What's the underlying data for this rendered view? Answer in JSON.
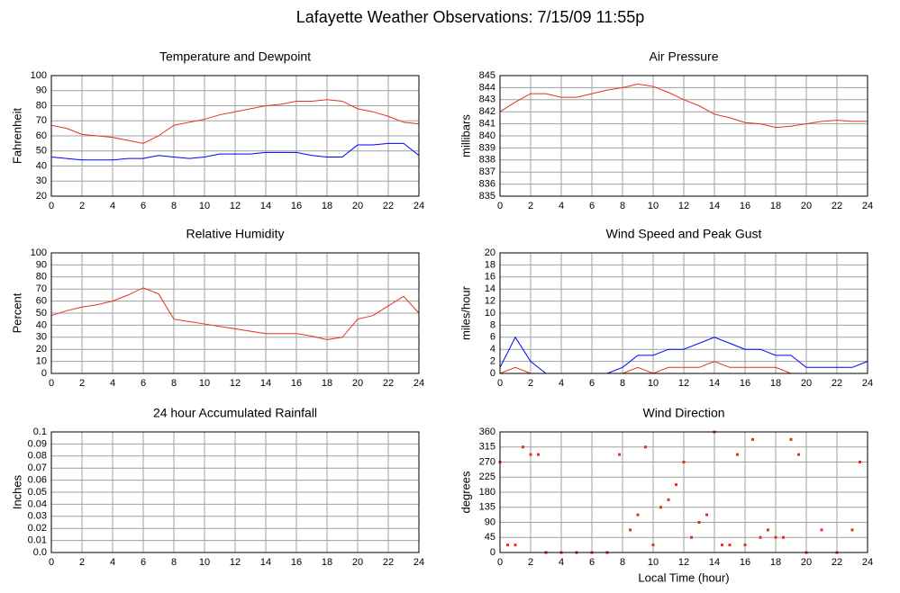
{
  "title": "Lafayette Weather Observations: 7/15/09 11:55p",
  "chart_data": [
    {
      "type": "line",
      "title": "Temperature and Dewpoint",
      "ylabel": "Fahrenheit",
      "x": [
        0,
        1,
        2,
        3,
        4,
        5,
        6,
        7,
        8,
        9,
        10,
        11,
        12,
        13,
        14,
        15,
        16,
        17,
        18,
        19,
        20,
        21,
        22,
        23,
        24
      ],
      "series": [
        {
          "color": "#e8301c",
          "values": [
            67,
            65,
            61,
            60,
            59,
            57,
            55,
            60,
            67,
            69,
            71,
            74,
            76,
            78,
            80,
            81,
            83,
            83,
            84,
            83,
            78,
            76,
            73,
            69,
            68
          ]
        },
        {
          "color": "#0000ff",
          "values": [
            46,
            45,
            44,
            44,
            44,
            45,
            45,
            47,
            46,
            45,
            46,
            48,
            48,
            48,
            49,
            49,
            49,
            47,
            46,
            46,
            54,
            54,
            55,
            55,
            47
          ]
        }
      ],
      "xlim": [
        0,
        24
      ],
      "xticks": [
        0,
        2,
        4,
        6,
        8,
        10,
        12,
        14,
        16,
        18,
        20,
        22,
        24
      ],
      "ylim": [
        20,
        100
      ],
      "yticks": [
        20,
        30,
        40,
        50,
        60,
        70,
        80,
        90,
        100
      ],
      "grid": true
    },
    {
      "type": "line",
      "title": "Air Pressure",
      "ylabel": "millibars",
      "x": [
        0,
        1,
        2,
        3,
        4,
        5,
        6,
        7,
        8,
        9,
        10,
        11,
        12,
        13,
        14,
        15,
        16,
        17,
        18,
        19,
        20,
        21,
        22,
        23,
        24
      ],
      "series": [
        {
          "color": "#e8301c",
          "values": [
            842.0,
            842.8,
            843.5,
            843.5,
            843.2,
            843.2,
            843.5,
            843.8,
            844.0,
            844.3,
            844.1,
            843.6,
            843.0,
            842.5,
            841.8,
            841.5,
            841.1,
            841.0,
            840.7,
            840.8,
            841.0,
            841.2,
            841.3,
            841.2,
            841.2
          ]
        }
      ],
      "xlim": [
        0,
        24
      ],
      "xticks": [
        0,
        2,
        4,
        6,
        8,
        10,
        12,
        14,
        16,
        18,
        20,
        22,
        24
      ],
      "ylim": [
        835,
        845
      ],
      "yticks": [
        835,
        836,
        837,
        838,
        839,
        840,
        841,
        842,
        843,
        844,
        845
      ],
      "grid": true
    },
    {
      "type": "line",
      "title": "Relative Humidity",
      "ylabel": "Percent",
      "x": [
        0,
        1,
        2,
        3,
        4,
        5,
        6,
        7,
        8,
        9,
        10,
        11,
        12,
        13,
        14,
        15,
        16,
        17,
        18,
        19,
        20,
        21,
        22,
        23,
        24
      ],
      "series": [
        {
          "color": "#e8301c",
          "values": [
            48,
            52,
            55,
            57,
            60,
            65,
            71,
            66,
            45,
            43,
            41,
            39,
            37,
            35,
            33,
            33,
            33,
            31,
            28,
            30,
            45,
            48,
            56,
            64,
            50
          ]
        }
      ],
      "xlim": [
        0,
        24
      ],
      "xticks": [
        0,
        2,
        4,
        6,
        8,
        10,
        12,
        14,
        16,
        18,
        20,
        22,
        24
      ],
      "ylim": [
        0,
        100
      ],
      "yticks": [
        0,
        10,
        20,
        30,
        40,
        50,
        60,
        70,
        80,
        90,
        100
      ],
      "grid": true
    },
    {
      "type": "line",
      "title": "Wind Speed and Peak Gust",
      "ylabel": "miles/hour",
      "x": [
        0,
        1,
        2,
        3,
        4,
        5,
        6,
        7,
        8,
        9,
        10,
        11,
        12,
        13,
        14,
        15,
        16,
        17,
        18,
        19,
        20,
        21,
        22,
        23,
        24
      ],
      "series": [
        {
          "color": "#0000ff",
          "values": [
            1,
            6,
            2,
            0,
            0,
            0,
            0,
            0,
            1,
            3,
            3,
            4,
            4,
            5,
            6,
            5,
            4,
            4,
            3,
            3,
            1,
            1,
            1,
            1,
            2
          ]
        },
        {
          "color": "#e8301c",
          "values": [
            0,
            1,
            0,
            0,
            0,
            0,
            0,
            0,
            0,
            1,
            0,
            1,
            1,
            1,
            2,
            1,
            1,
            1,
            1,
            0,
            0,
            0,
            0,
            0,
            0
          ]
        }
      ],
      "xlim": [
        0,
        24
      ],
      "xticks": [
        0,
        2,
        4,
        6,
        8,
        10,
        12,
        14,
        16,
        18,
        20,
        22,
        24
      ],
      "ylim": [
        0,
        20
      ],
      "yticks": [
        0,
        2,
        4,
        6,
        8,
        10,
        12,
        14,
        16,
        18,
        20
      ],
      "grid": true
    },
    {
      "type": "line",
      "title": "24 hour Accumulated Rainfall",
      "ylabel": "Inches",
      "x": [
        0,
        1,
        2,
        3,
        4,
        5,
        6,
        7,
        8,
        9,
        10,
        11,
        12,
        13,
        14,
        15,
        16,
        17,
        18,
        19,
        20,
        21,
        22,
        23,
        24
      ],
      "series": [
        {
          "color": "#e8301c",
          "values": [
            0,
            0,
            0,
            0,
            0,
            0,
            0,
            0,
            0,
            0,
            0,
            0,
            0,
            0,
            0,
            0,
            0,
            0,
            0,
            0,
            0,
            0,
            0,
            0,
            0
          ]
        }
      ],
      "xlim": [
        0,
        24
      ],
      "xticks": [
        0,
        2,
        4,
        6,
        8,
        10,
        12,
        14,
        16,
        18,
        20,
        22,
        24
      ],
      "ylim": [
        0,
        0.1
      ],
      "yticks": [
        {
          "value": 0,
          "label": "0.0"
        },
        0.01,
        0.02,
        0.03,
        0.04,
        0.05,
        0.06,
        0.07,
        0.08,
        0.09,
        0.1
      ],
      "grid": true
    },
    {
      "type": "scatter",
      "title": "Wind Direction",
      "ylabel": "degrees",
      "xlabel": "Local Time (hour)",
      "x": [
        0,
        0.5,
        1,
        1.5,
        2,
        2.5,
        3,
        4,
        5,
        6,
        7,
        7.8,
        8.5,
        9,
        9.5,
        10,
        10.5,
        11,
        11.5,
        12,
        12.5,
        13,
        13.5,
        14,
        14.5,
        15,
        15.5,
        16,
        16.5,
        17,
        17.5,
        18,
        18.5,
        19,
        19.5,
        20,
        21,
        22,
        23,
        23.5
      ],
      "series": [
        {
          "color": "#e8301c",
          "values": [
            270,
            22.5,
            22.5,
            315,
            292.5,
            292.5,
            0,
            0,
            0,
            0,
            0,
            292.5,
            67.5,
            112.5,
            315,
            22.5,
            135,
            157.5,
            202.5,
            270,
            45,
            90,
            112.5,
            360,
            22.5,
            22.5,
            292.5,
            22.5,
            337.5,
            45,
            67.5,
            45,
            45,
            337.5,
            292.5,
            0,
            67.5,
            0,
            67.5,
            270
          ]
        }
      ],
      "xlim": [
        0,
        24
      ],
      "xticks": [
        0,
        2,
        4,
        6,
        8,
        10,
        12,
        14,
        16,
        18,
        20,
        22,
        24
      ],
      "ylim": [
        0,
        360
      ],
      "yticks": [
        0,
        45,
        90,
        135,
        180,
        225,
        270,
        315,
        360
      ],
      "grid": true
    }
  ]
}
